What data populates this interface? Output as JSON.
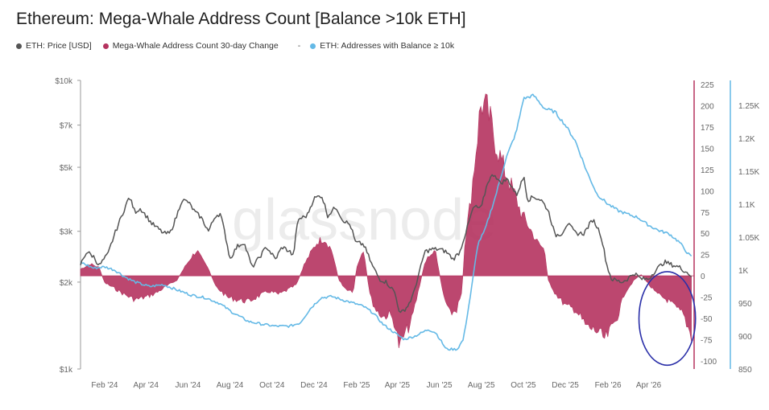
{
  "title": "Ethereum: Mega-Whale Address Count [Balance >10k ETH]",
  "legend": {
    "items": [
      {
        "label": "ETH: Price [USD]",
        "color": "#555555"
      },
      {
        "label": "Mega-Whale Address Count 30-day Change",
        "color": "#b5335f"
      },
      {
        "label": "ETH: Addresses with Balance ≥ 10k",
        "color": "#64b9e6"
      }
    ],
    "separator": "-"
  },
  "watermark": "glassnode",
  "chart_data": {
    "type": "line",
    "x_ticks": [
      "Feb '24",
      "Apr '24",
      "Jun '24",
      "Aug '24",
      "Oct '24",
      "Dec '24",
      "Feb '25",
      "Apr '25",
      "Jun '25",
      "Aug '25",
      "Oct '25",
      "Dec '25",
      "Feb '26",
      "Apr '26"
    ],
    "x_range": [
      "2024-01-01",
      "2026-06-10"
    ],
    "y_left": {
      "scale": "log",
      "range": [
        1000,
        10000
      ],
      "ticks": [
        "$1k",
        "$2k",
        "$3k",
        "$5k",
        "$7k",
        "$10k"
      ],
      "tick_values": [
        1000,
        2000,
        3000,
        5000,
        7000,
        10000
      ]
    },
    "y_change": {
      "range": [
        -110,
        225
      ],
      "ticks": [
        "225",
        "200",
        "175",
        "150",
        "125",
        "100",
        "75",
        "50",
        "25",
        "0",
        "-25",
        "-50",
        "-75",
        "-100"
      ],
      "tick_values": [
        225,
        200,
        175,
        150,
        125,
        100,
        75,
        50,
        25,
        0,
        -25,
        -50,
        -75,
        -100
      ]
    },
    "y_right": {
      "range": [
        850,
        1300
      ],
      "ticks": [
        "1.25K",
        "1.2K",
        "1.15K",
        "1.1K",
        "1.05K",
        "1K",
        "950",
        "900",
        "850"
      ],
      "tick_values": [
        1250,
        1200,
        1150,
        1100,
        1050,
        1000,
        950,
        900,
        850
      ]
    },
    "grid": false,
    "series": [
      {
        "name": "ETH: Price [USD]",
        "axis": "left",
        "color": "#555555",
        "points": [
          [
            "2024-01-01",
            2300
          ],
          [
            "2024-01-10",
            2550
          ],
          [
            "2024-01-20",
            2450
          ],
          [
            "2024-01-28",
            2280
          ],
          [
            "2024-02-10",
            2500
          ],
          [
            "2024-02-20",
            2950
          ],
          [
            "2024-03-01",
            3400
          ],
          [
            "2024-03-12",
            3950
          ],
          [
            "2024-03-20",
            3500
          ],
          [
            "2024-03-28",
            3600
          ],
          [
            "2024-04-05",
            3400
          ],
          [
            "2024-04-13",
            3200
          ],
          [
            "2024-04-20",
            3100
          ],
          [
            "2024-05-01",
            2950
          ],
          [
            "2024-05-10",
            2950
          ],
          [
            "2024-05-20",
            3400
          ],
          [
            "2024-05-27",
            3850
          ],
          [
            "2024-06-05",
            3800
          ],
          [
            "2024-06-15",
            3500
          ],
          [
            "2024-06-24",
            3350
          ],
          [
            "2024-07-05",
            3000
          ],
          [
            "2024-07-15",
            3400
          ],
          [
            "2024-07-22",
            3450
          ],
          [
            "2024-08-05",
            2400
          ],
          [
            "2024-08-15",
            2650
          ],
          [
            "2024-08-25",
            2750
          ],
          [
            "2024-09-06",
            2250
          ],
          [
            "2024-09-15",
            2400
          ],
          [
            "2024-09-27",
            2650
          ],
          [
            "2024-10-10",
            2400
          ],
          [
            "2024-10-20",
            2650
          ],
          [
            "2024-10-31",
            2550
          ],
          [
            "2024-11-05",
            2450
          ],
          [
            "2024-11-12",
            3300
          ],
          [
            "2024-11-25",
            3400
          ],
          [
            "2024-12-05",
            3900
          ],
          [
            "2024-12-16",
            4000
          ],
          [
            "2024-12-25",
            3400
          ],
          [
            "2025-01-06",
            3650
          ],
          [
            "2025-01-15",
            3300
          ],
          [
            "2025-01-27",
            3150
          ],
          [
            "2025-02-03",
            2750
          ],
          [
            "2025-02-15",
            2700
          ],
          [
            "2025-02-27",
            2300
          ],
          [
            "2025-03-10",
            2050
          ],
          [
            "2025-03-20",
            2000
          ],
          [
            "2025-04-01",
            1850
          ],
          [
            "2025-04-09",
            1550
          ],
          [
            "2025-04-20",
            1650
          ],
          [
            "2025-04-28",
            1800
          ],
          [
            "2025-05-08",
            2200
          ],
          [
            "2025-05-15",
            2550
          ],
          [
            "2025-05-25",
            2600
          ],
          [
            "2025-06-05",
            2600
          ],
          [
            "2025-06-15",
            2550
          ],
          [
            "2025-06-25",
            2400
          ],
          [
            "2025-07-05",
            2550
          ],
          [
            "2025-07-15",
            3050
          ],
          [
            "2025-07-25",
            3650
          ],
          [
            "2025-08-05",
            3600
          ],
          [
            "2025-08-15",
            4500
          ],
          [
            "2025-08-24",
            4750
          ],
          [
            "2025-09-01",
            4400
          ],
          [
            "2025-09-12",
            4550
          ],
          [
            "2025-09-25",
            4000
          ],
          [
            "2025-10-06",
            4650
          ],
          [
            "2025-10-11",
            3850
          ],
          [
            "2025-10-20",
            3950
          ],
          [
            "2025-10-31",
            3850
          ],
          [
            "2025-11-10",
            3550
          ],
          [
            "2025-11-20",
            2900
          ],
          [
            "2025-11-30",
            2950
          ],
          [
            "2025-12-08",
            3200
          ],
          [
            "2025-12-20",
            2950
          ],
          [
            "2026-01-01",
            2950
          ],
          [
            "2026-01-14",
            3300
          ],
          [
            "2026-01-25",
            2950
          ],
          [
            "2026-02-03",
            2300
          ],
          [
            "2026-02-10",
            2050
          ],
          [
            "2026-02-25",
            2000
          ],
          [
            "2026-03-05",
            2050
          ],
          [
            "2026-03-15",
            2150
          ],
          [
            "2026-03-25",
            2050
          ],
          [
            "2026-04-05",
            2050
          ],
          [
            "2026-04-15",
            2200
          ],
          [
            "2026-04-28",
            2350
          ],
          [
            "2026-05-08",
            2300
          ],
          [
            "2026-05-20",
            2250
          ],
          [
            "2026-06-01",
            2150
          ],
          [
            "2026-06-06",
            2100
          ]
        ]
      },
      {
        "name": "Mega-Whale Address Count 30-day Change",
        "axis": "change",
        "color": "#b5335f",
        "points": [
          [
            "2024-01-01",
            8
          ],
          [
            "2024-01-15",
            14
          ],
          [
            "2024-01-28",
            10
          ],
          [
            "2024-02-05",
            -8
          ],
          [
            "2024-02-20",
            -15
          ],
          [
            "2024-03-05",
            -22
          ],
          [
            "2024-03-20",
            -28
          ],
          [
            "2024-04-05",
            -25
          ],
          [
            "2024-04-20",
            -20
          ],
          [
            "2024-05-05",
            -12
          ],
          [
            "2024-05-20",
            -5
          ],
          [
            "2024-05-31",
            10
          ],
          [
            "2024-06-10",
            22
          ],
          [
            "2024-06-18",
            30
          ],
          [
            "2024-06-25",
            20
          ],
          [
            "2024-07-05",
            8
          ],
          [
            "2024-07-15",
            -12
          ],
          [
            "2024-08-01",
            -25
          ],
          [
            "2024-08-15",
            -28
          ],
          [
            "2024-09-01",
            -30
          ],
          [
            "2024-09-15",
            -24
          ],
          [
            "2024-10-01",
            -18
          ],
          [
            "2024-10-15",
            -22
          ],
          [
            "2024-10-31",
            -15
          ],
          [
            "2024-11-10",
            -10
          ],
          [
            "2024-11-20",
            12
          ],
          [
            "2024-12-01",
            28
          ],
          [
            "2024-12-10",
            40
          ],
          [
            "2024-12-20",
            44
          ],
          [
            "2024-12-31",
            30
          ],
          [
            "2025-01-10",
            -5
          ],
          [
            "2025-01-20",
            -15
          ],
          [
            "2025-01-31",
            -18
          ],
          [
            "2025-02-05",
            10
          ],
          [
            "2025-02-15",
            28
          ],
          [
            "2025-02-25",
            -25
          ],
          [
            "2025-03-05",
            -40
          ],
          [
            "2025-03-15",
            -48
          ],
          [
            "2025-03-25",
            -45
          ],
          [
            "2025-04-01",
            -55
          ],
          [
            "2025-04-08",
            -85
          ],
          [
            "2025-04-15",
            -70
          ],
          [
            "2025-04-25",
            -55
          ],
          [
            "2025-05-05",
            -20
          ],
          [
            "2025-05-15",
            15
          ],
          [
            "2025-05-22",
            25
          ],
          [
            "2025-05-31",
            28
          ],
          [
            "2025-06-10",
            -20
          ],
          [
            "2025-06-20",
            -45
          ],
          [
            "2025-06-30",
            -40
          ],
          [
            "2025-07-08",
            -20
          ],
          [
            "2025-07-12",
            40
          ],
          [
            "2025-07-20",
            85
          ],
          [
            "2025-07-31",
            170
          ],
          [
            "2025-08-05",
            205
          ],
          [
            "2025-08-15",
            190
          ],
          [
            "2025-08-25",
            160
          ],
          [
            "2025-09-05",
            130
          ],
          [
            "2025-09-15",
            110
          ],
          [
            "2025-09-25",
            90
          ],
          [
            "2025-10-01",
            75
          ],
          [
            "2025-10-15",
            55
          ],
          [
            "2025-10-25",
            40
          ],
          [
            "2025-11-05",
            30
          ],
          [
            "2025-11-10",
            -5
          ],
          [
            "2025-11-20",
            -20
          ],
          [
            "2025-12-05",
            -35
          ],
          [
            "2025-12-20",
            -40
          ],
          [
            "2026-01-05",
            -60
          ],
          [
            "2026-01-20",
            -65
          ],
          [
            "2026-02-01",
            -75
          ],
          [
            "2026-02-08",
            -65
          ],
          [
            "2026-02-20",
            -45
          ],
          [
            "2026-03-01",
            -20
          ],
          [
            "2026-03-15",
            -5
          ],
          [
            "2026-03-25",
            2
          ],
          [
            "2026-04-05",
            -10
          ],
          [
            "2026-04-15",
            -20
          ],
          [
            "2026-04-25",
            -25
          ],
          [
            "2026-05-05",
            -30
          ],
          [
            "2026-05-15",
            -38
          ],
          [
            "2026-05-25",
            -45
          ],
          [
            "2026-06-01",
            -60
          ],
          [
            "2026-06-06",
            -70
          ]
        ]
      },
      {
        "name": "ETH: Addresses with Balance ≥ 10k",
        "axis": "right",
        "color": "#64b9e6",
        "points": [
          [
            "2024-01-01",
            1012
          ],
          [
            "2024-01-20",
            1003
          ],
          [
            "2024-02-05",
            1005
          ],
          [
            "2024-02-20",
            1000
          ],
          [
            "2024-03-05",
            990
          ],
          [
            "2024-03-20",
            982
          ],
          [
            "2024-04-10",
            975
          ],
          [
            "2024-04-30",
            978
          ],
          [
            "2024-05-20",
            970
          ],
          [
            "2024-06-10",
            962
          ],
          [
            "2024-07-01",
            958
          ],
          [
            "2024-07-20",
            950
          ],
          [
            "2024-08-10",
            935
          ],
          [
            "2024-09-01",
            922
          ],
          [
            "2024-09-20",
            918
          ],
          [
            "2024-10-10",
            915
          ],
          [
            "2024-10-31",
            915
          ],
          [
            "2024-11-15",
            920
          ],
          [
            "2024-11-30",
            942
          ],
          [
            "2024-12-15",
            958
          ],
          [
            "2024-12-31",
            960
          ],
          [
            "2025-01-15",
            955
          ],
          [
            "2025-01-31",
            950
          ],
          [
            "2025-02-15",
            945
          ],
          [
            "2025-03-01",
            935
          ],
          [
            "2025-03-15",
            918
          ],
          [
            "2025-04-01",
            905
          ],
          [
            "2025-04-15",
            895
          ],
          [
            "2025-05-01",
            900
          ],
          [
            "2025-05-20",
            910
          ],
          [
            "2025-05-31",
            905
          ],
          [
            "2025-06-15",
            880
          ],
          [
            "2025-07-01",
            880
          ],
          [
            "2025-07-10",
            895
          ],
          [
            "2025-07-20",
            960
          ],
          [
            "2025-07-31",
            1040
          ],
          [
            "2025-08-10",
            1060
          ],
          [
            "2025-08-25",
            1110
          ],
          [
            "2025-09-10",
            1170
          ],
          [
            "2025-09-25",
            1210
          ],
          [
            "2025-10-05",
            1260
          ],
          [
            "2025-10-20",
            1265
          ],
          [
            "2025-11-05",
            1245
          ],
          [
            "2025-11-20",
            1240
          ],
          [
            "2025-12-05",
            1220
          ],
          [
            "2025-12-20",
            1195
          ],
          [
            "2026-01-05",
            1150
          ],
          [
            "2026-01-20",
            1115
          ],
          [
            "2026-02-05",
            1100
          ],
          [
            "2026-02-20",
            1090
          ],
          [
            "2026-03-05",
            1085
          ],
          [
            "2026-03-20",
            1080
          ],
          [
            "2026-04-05",
            1068
          ],
          [
            "2026-04-20",
            1060
          ],
          [
            "2026-05-05",
            1055
          ],
          [
            "2026-05-20",
            1042
          ],
          [
            "2026-06-01",
            1025
          ],
          [
            "2026-06-06",
            1020
          ]
        ]
      }
    ],
    "annotations": [
      {
        "type": "ellipse",
        "color": "#2a2fa8",
        "x_range": [
          "2026-03-22",
          "2026-06-12"
        ],
        "y_change_range": [
          -105,
          5
        ]
      }
    ]
  }
}
